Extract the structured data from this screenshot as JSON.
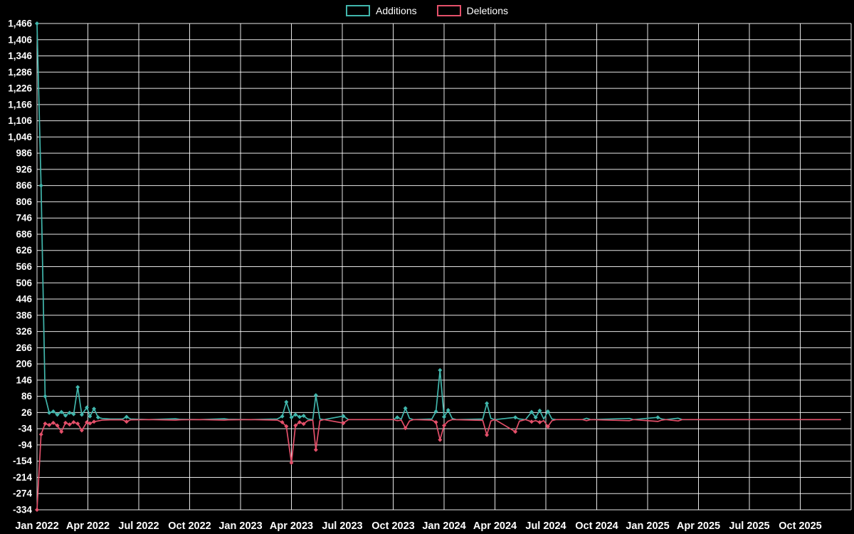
{
  "chart": {
    "background_color": "#000000",
    "grid_color": "#ffffff",
    "text_color": "#ffffff"
  },
  "chart_data": {
    "type": "line",
    "title": "",
    "xlabel": "",
    "ylabel": "",
    "grid": true,
    "legend_position": "top-center",
    "xlim": [
      2022.0,
      2026.0
    ],
    "ylim": [
      -334,
      1466
    ],
    "y_tick_step": 60,
    "y_ticks": [
      -334,
      -274,
      -214,
      -154,
      -94,
      -34,
      26,
      86,
      146,
      206,
      266,
      326,
      386,
      446,
      506,
      566,
      626,
      686,
      746,
      806,
      866,
      926,
      986,
      1046,
      1106,
      1166,
      1226,
      1286,
      1346,
      1406,
      1466
    ],
    "x_ticks": [
      {
        "label": "Jan 2022",
        "x": 2022.0
      },
      {
        "label": "Apr 2022",
        "x": 2022.25
      },
      {
        "label": "Jul 2022",
        "x": 2022.5
      },
      {
        "label": "Oct 2022",
        "x": 2022.75
      },
      {
        "label": "Jan 2023",
        "x": 2023.0
      },
      {
        "label": "Apr 2023",
        "x": 2023.25
      },
      {
        "label": "Jul 2023",
        "x": 2023.5
      },
      {
        "label": "Oct 2023",
        "x": 2023.75
      },
      {
        "label": "Jan 2024",
        "x": 2024.0
      },
      {
        "label": "Apr 2024",
        "x": 2024.25
      },
      {
        "label": "Jul 2024",
        "x": 2024.5
      },
      {
        "label": "Oct 2024",
        "x": 2024.75
      },
      {
        "label": "Jan 2025",
        "x": 2025.0
      },
      {
        "label": "Apr 2025",
        "x": 2025.25
      },
      {
        "label": "Jul 2025",
        "x": 2025.5
      },
      {
        "label": "Oct 2025",
        "x": 2025.75
      }
    ],
    "series": [
      {
        "name": "Additions",
        "color": "#41b6ac",
        "points": [
          [
            2022.0,
            1466
          ],
          [
            2022.02,
            866
          ],
          [
            2022.04,
            86
          ],
          [
            2022.06,
            25
          ],
          [
            2022.08,
            30
          ],
          [
            2022.1,
            18
          ],
          [
            2022.12,
            28
          ],
          [
            2022.14,
            15
          ],
          [
            2022.16,
            25
          ],
          [
            2022.18,
            20
          ],
          [
            2022.2,
            120
          ],
          [
            2022.22,
            18
          ],
          [
            2022.245,
            45
          ],
          [
            2022.26,
            12
          ],
          [
            2022.28,
            40
          ],
          [
            2022.3,
            8
          ],
          [
            2022.32,
            4
          ],
          [
            2022.36,
            2
          ],
          [
            2022.42,
            2
          ],
          [
            2022.44,
            10
          ],
          [
            2022.46,
            2
          ],
          [
            2022.55,
            0
          ],
          [
            2022.68,
            3
          ],
          [
            2022.7,
            1
          ],
          [
            2022.8,
            0
          ],
          [
            2022.92,
            3
          ],
          [
            2022.94,
            1
          ],
          [
            2023.05,
            0
          ],
          [
            2023.18,
            2
          ],
          [
            2023.205,
            12
          ],
          [
            2023.225,
            65
          ],
          [
            2023.25,
            8
          ],
          [
            2023.27,
            18
          ],
          [
            2023.29,
            10
          ],
          [
            2023.31,
            14
          ],
          [
            2023.33,
            2
          ],
          [
            2023.355,
            0
          ],
          [
            2023.37,
            90
          ],
          [
            2023.39,
            2
          ],
          [
            2023.41,
            0
          ],
          [
            2023.505,
            13
          ],
          [
            2023.53,
            0
          ],
          [
            2023.75,
            0
          ],
          [
            2023.77,
            8
          ],
          [
            2023.79,
            2
          ],
          [
            2023.81,
            42
          ],
          [
            2023.83,
            4
          ],
          [
            2023.85,
            0
          ],
          [
            2023.94,
            2
          ],
          [
            2023.96,
            30
          ],
          [
            2023.98,
            183
          ],
          [
            2024.0,
            10
          ],
          [
            2024.02,
            35
          ],
          [
            2024.04,
            4
          ],
          [
            2024.06,
            0
          ],
          [
            2024.19,
            2
          ],
          [
            2024.21,
            60
          ],
          [
            2024.23,
            4
          ],
          [
            2024.25,
            0
          ],
          [
            2024.35,
            8
          ],
          [
            2024.37,
            2
          ],
          [
            2024.4,
            0
          ],
          [
            2024.43,
            28
          ],
          [
            2024.45,
            8
          ],
          [
            2024.47,
            33
          ],
          [
            2024.49,
            2
          ],
          [
            2024.51,
            30
          ],
          [
            2024.53,
            2
          ],
          [
            2024.55,
            0
          ],
          [
            2024.68,
            0
          ],
          [
            2024.7,
            5
          ],
          [
            2024.72,
            0
          ],
          [
            2024.91,
            4
          ],
          [
            2024.93,
            0
          ],
          [
            2025.05,
            8
          ],
          [
            2025.07,
            2
          ],
          [
            2025.09,
            0
          ],
          [
            2025.15,
            5
          ],
          [
            2025.17,
            0
          ],
          [
            2025.95,
            0
          ]
        ]
      },
      {
        "name": "Deletions",
        "color": "#e4506a",
        "points": [
          [
            2022.0,
            -334
          ],
          [
            2022.02,
            -55
          ],
          [
            2022.04,
            -15
          ],
          [
            2022.06,
            -20
          ],
          [
            2022.08,
            -12
          ],
          [
            2022.1,
            -22
          ],
          [
            2022.12,
            -45
          ],
          [
            2022.14,
            -12
          ],
          [
            2022.16,
            -18
          ],
          [
            2022.18,
            -10
          ],
          [
            2022.2,
            -15
          ],
          [
            2022.22,
            -40
          ],
          [
            2022.245,
            -10
          ],
          [
            2022.26,
            -14
          ],
          [
            2022.28,
            -8
          ],
          [
            2022.3,
            -5
          ],
          [
            2022.32,
            -2
          ],
          [
            2022.36,
            -1
          ],
          [
            2022.42,
            -1
          ],
          [
            2022.44,
            -8
          ],
          [
            2022.46,
            -1
          ],
          [
            2022.55,
            0
          ],
          [
            2022.68,
            -2
          ],
          [
            2022.7,
            -1
          ],
          [
            2022.8,
            0
          ],
          [
            2022.92,
            -2
          ],
          [
            2022.94,
            -1
          ],
          [
            2023.05,
            0
          ],
          [
            2023.18,
            -2
          ],
          [
            2023.205,
            -10
          ],
          [
            2023.225,
            -25
          ],
          [
            2023.25,
            -160
          ],
          [
            2023.27,
            -22
          ],
          [
            2023.29,
            -10
          ],
          [
            2023.31,
            -16
          ],
          [
            2023.33,
            -4
          ],
          [
            2023.355,
            -2
          ],
          [
            2023.37,
            -112
          ],
          [
            2023.39,
            -4
          ],
          [
            2023.41,
            0
          ],
          [
            2023.505,
            -13
          ],
          [
            2023.53,
            0
          ],
          [
            2023.75,
            0
          ],
          [
            2023.77,
            -4
          ],
          [
            2023.79,
            -2
          ],
          [
            2023.81,
            -32
          ],
          [
            2023.83,
            -5
          ],
          [
            2023.85,
            0
          ],
          [
            2023.94,
            -2
          ],
          [
            2023.96,
            -10
          ],
          [
            2023.98,
            -75
          ],
          [
            2024.0,
            -22
          ],
          [
            2024.02,
            -6
          ],
          [
            2024.04,
            0
          ],
          [
            2024.19,
            -3
          ],
          [
            2024.21,
            -57
          ],
          [
            2024.23,
            -5
          ],
          [
            2024.25,
            0
          ],
          [
            2024.35,
            -45
          ],
          [
            2024.37,
            -6
          ],
          [
            2024.4,
            0
          ],
          [
            2024.43,
            -8
          ],
          [
            2024.45,
            -4
          ],
          [
            2024.47,
            -10
          ],
          [
            2024.49,
            -4
          ],
          [
            2024.51,
            -26
          ],
          [
            2024.53,
            -4
          ],
          [
            2024.55,
            0
          ],
          [
            2024.68,
            0
          ],
          [
            2024.7,
            -4
          ],
          [
            2024.72,
            0
          ],
          [
            2024.91,
            -4
          ],
          [
            2024.93,
            0
          ],
          [
            2025.05,
            -7
          ],
          [
            2025.07,
            -2
          ],
          [
            2025.09,
            0
          ],
          [
            2025.15,
            -5
          ],
          [
            2025.17,
            0
          ],
          [
            2025.95,
            0
          ]
        ]
      }
    ]
  }
}
